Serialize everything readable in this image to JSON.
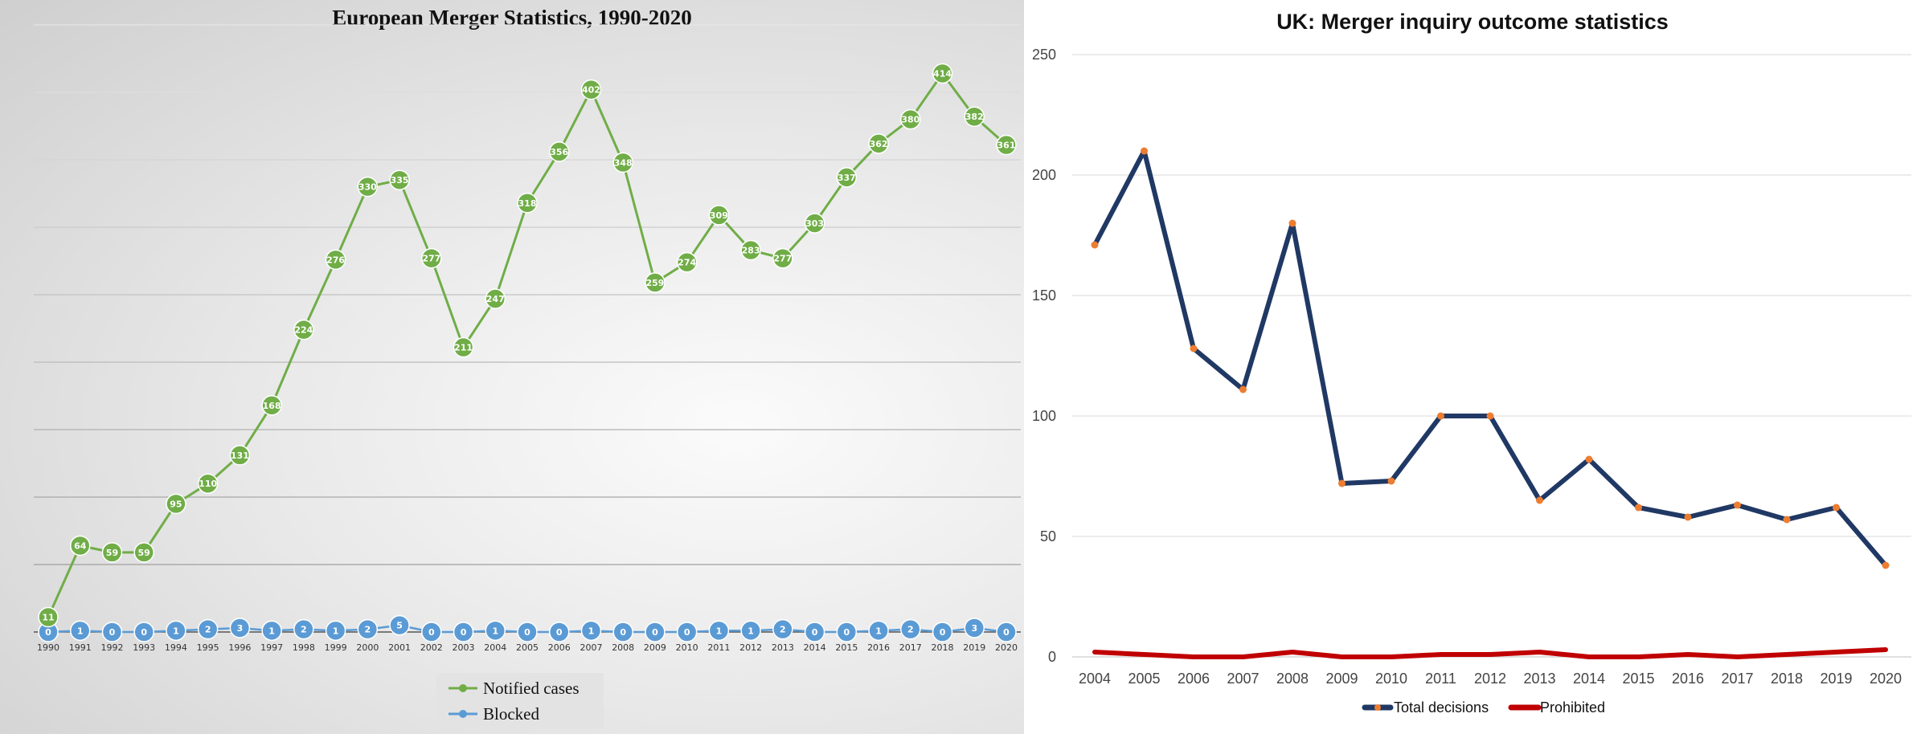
{
  "chart_data": [
    {
      "type": "line",
      "title": "European Merger Statistics, 1990-2020",
      "x": [
        "1990",
        "1991",
        "1992",
        "1993",
        "1994",
        "1995",
        "1996",
        "1997",
        "1998",
        "1999",
        "2000",
        "2001",
        "2002",
        "2003",
        "2004",
        "2005",
        "2006",
        "2007",
        "2008",
        "2009",
        "2010",
        "2011",
        "2012",
        "2013",
        "2014",
        "2015",
        "2016",
        "2017",
        "2018",
        "2019",
        "2020"
      ],
      "series": [
        {
          "name": "Notified cases",
          "color": "#70ad47",
          "values": [
            11,
            64,
            59,
            59,
            95,
            110,
            131,
            168,
            224,
            276,
            330,
            335,
            277,
            211,
            247,
            318,
            356,
            402,
            348,
            259,
            274,
            309,
            283,
            277,
            303,
            337,
            362,
            380,
            414,
            382,
            361
          ]
        },
        {
          "name": "Blocked",
          "color": "#5b9bd5",
          "values": [
            0,
            1,
            0,
            0,
            1,
            2,
            3,
            1,
            2,
            1,
            2,
            5,
            0,
            0,
            1,
            0,
            0,
            1,
            0,
            0,
            0,
            1,
            1,
            2,
            0,
            0,
            1,
            2,
            0,
            3,
            0
          ]
        }
      ],
      "ylim": [
        0,
        450
      ],
      "y_axis_labels": false,
      "data_labels": true,
      "grid": true,
      "legend": "bottom-center"
    },
    {
      "type": "line",
      "title": "UK: Merger inquiry outcome statistics",
      "x": [
        "2004",
        "2005",
        "2006",
        "2007",
        "2008",
        "2009",
        "2010",
        "2011",
        "2012",
        "2013",
        "2014",
        "2015",
        "2016",
        "2017",
        "2018",
        "2019",
        "2020"
      ],
      "series": [
        {
          "name": "Total decisions",
          "color": "#203864",
          "marker_color": "#ed7d31",
          "values": [
            171,
            210,
            128,
            111,
            180,
            72,
            73,
            100,
            100,
            65,
            82,
            62,
            58,
            63,
            57,
            62,
            38
          ]
        },
        {
          "name": "Prohibited",
          "color": "#c00000",
          "values": [
            2,
            1,
            0,
            0,
            2,
            0,
            0,
            1,
            1,
            2,
            0,
            0,
            1,
            0,
            1,
            2,
            3
          ]
        }
      ],
      "yticks": [
        "0",
        "50",
        "100",
        "150",
        "200",
        "250"
      ],
      "ylim": [
        0,
        250
      ],
      "grid": true,
      "legend": "bottom-center"
    }
  ]
}
